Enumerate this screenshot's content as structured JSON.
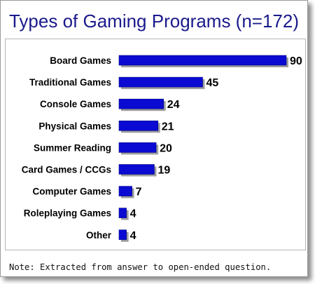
{
  "chart_data": {
    "type": "bar",
    "orientation": "horizontal",
    "title": "Types of Gaming Programs (n=172)",
    "categories": [
      "Board Games",
      "Traditional Games",
      "Console Games",
      "Physical Games",
      "Summer Reading",
      "Card Games / CCGs",
      "Computer Games",
      "Roleplaying Games",
      "Other"
    ],
    "values": [
      90,
      45,
      24,
      21,
      20,
      19,
      7,
      4,
      4
    ],
    "data_labels": [
      "90",
      "45",
      "24",
      "21",
      "20",
      "19",
      "7",
      "4",
      "4"
    ],
    "xlim": [
      0,
      90
    ],
    "grid": false,
    "legend": "none",
    "bar_color": "#0a0ad2",
    "bar_shadow_color": "#9e9e9e",
    "title_color": "#1a1a8c"
  },
  "note": "Note: Extracted from answer to open-ended question."
}
